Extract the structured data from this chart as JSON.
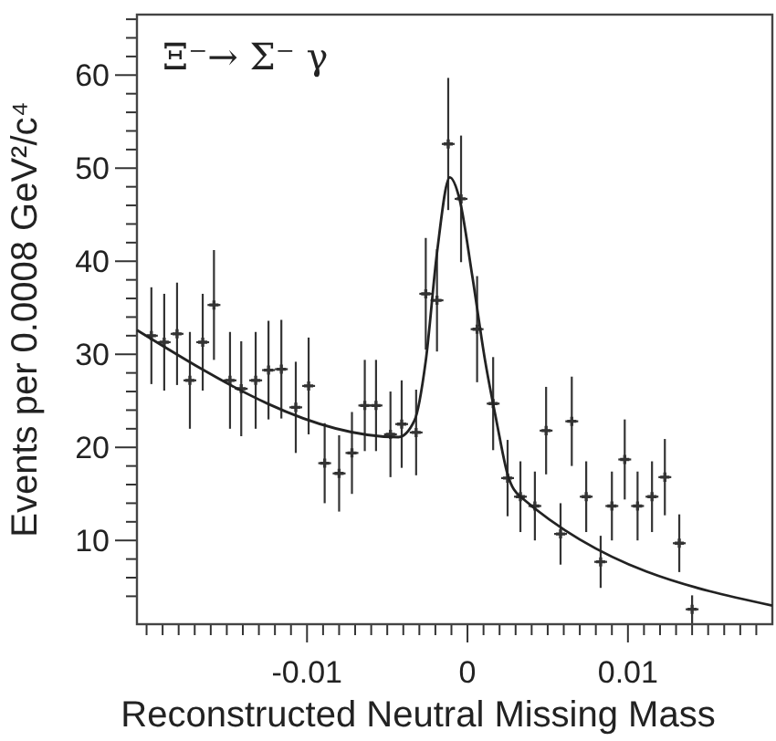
{
  "chart_data": {
    "type": "scatter",
    "xlabel": "Reconstructed Neutral Missing Mass",
    "ylabel": "Events per 0.0008 GeV²/c⁴",
    "annotations": [
      "Ξ⁻→ Σ⁻ γ"
    ],
    "xlim": [
      -0.0206,
      0.019
    ],
    "ylim": [
      1,
      66.5
    ],
    "xticks": [
      {
        "value": -0.02,
        "label": null
      },
      {
        "value": -0.019,
        "label": null
      },
      {
        "value": -0.018,
        "label": null
      },
      {
        "value": -0.017,
        "label": null
      },
      {
        "value": -0.016,
        "label": null
      },
      {
        "value": -0.015,
        "label": null
      },
      {
        "value": -0.014,
        "label": null
      },
      {
        "value": -0.013,
        "label": null
      },
      {
        "value": -0.012,
        "label": null
      },
      {
        "value": -0.011,
        "label": null
      },
      {
        "value": -0.01,
        "label": "-0.01"
      },
      {
        "value": -0.009,
        "label": null
      },
      {
        "value": -0.008,
        "label": null
      },
      {
        "value": -0.007,
        "label": null
      },
      {
        "value": -0.006,
        "label": null
      },
      {
        "value": -0.005,
        "label": null
      },
      {
        "value": -0.004,
        "label": null
      },
      {
        "value": -0.003,
        "label": null
      },
      {
        "value": -0.002,
        "label": null
      },
      {
        "value": -0.001,
        "label": null
      },
      0,
      {
        "value": 0.001,
        "label": null
      },
      {
        "value": 0.002,
        "label": null
      },
      {
        "value": 0.003,
        "label": null
      },
      {
        "value": 0.004,
        "label": null
      },
      {
        "value": 0.005,
        "label": null
      },
      {
        "value": 0.006,
        "label": null
      },
      {
        "value": 0.007,
        "label": null
      },
      {
        "value": 0.008,
        "label": null
      },
      {
        "value": 0.009,
        "label": null
      },
      0.01,
      {
        "value": 0.011,
        "label": null
      },
      {
        "value": 0.012,
        "label": null
      },
      {
        "value": 0.013,
        "label": null
      },
      {
        "value": 0.014,
        "label": null
      },
      {
        "value": 0.015,
        "label": null
      },
      {
        "value": 0.016,
        "label": null
      },
      {
        "value": 0.017,
        "label": null
      },
      {
        "value": 0.018,
        "label": null
      }
    ],
    "yticks": [
      {
        "value": 4,
        "label": null
      },
      {
        "value": 6,
        "label": null
      },
      {
        "value": 8,
        "label": null
      },
      10,
      {
        "value": 12,
        "label": null
      },
      {
        "value": 14,
        "label": null
      },
      {
        "value": 16,
        "label": null
      },
      {
        "value": 18,
        "label": null
      },
      20,
      {
        "value": 22,
        "label": null
      },
      {
        "value": 24,
        "label": null
      },
      {
        "value": 26,
        "label": null
      },
      {
        "value": 28,
        "label": null
      },
      30,
      {
        "value": 32,
        "label": null
      },
      {
        "value": 34,
        "label": null
      },
      {
        "value": 36,
        "label": null
      },
      {
        "value": 38,
        "label": null
      },
      40,
      {
        "value": 42,
        "label": null
      },
      {
        "value": 44,
        "label": null
      },
      {
        "value": 46,
        "label": null
      },
      {
        "value": 48,
        "label": null
      },
      50,
      {
        "value": 52,
        "label": null
      },
      {
        "value": 54,
        "label": null
      },
      {
        "value": 56,
        "label": null
      },
      {
        "value": 58,
        "label": null
      },
      60,
      {
        "value": 62,
        "label": null
      },
      {
        "value": 64,
        "label": null
      },
      {
        "value": 66,
        "label": null
      }
    ],
    "grid": false,
    "series": [
      {
        "color": "#333333",
        "marker": "cross",
        "x": [
          -0.0197,
          -0.0189,
          -0.0181,
          -0.0173,
          -0.0165,
          -0.0158,
          -0.0148,
          -0.0141,
          -0.0132,
          -0.0124,
          -0.0116,
          -0.0107,
          -0.0099,
          -0.0089,
          -0.008,
          -0.0072,
          -0.0064,
          -0.0057,
          -0.0048,
          -0.0041,
          -0.0032,
          -0.0026,
          -0.0019,
          -0.0012,
          -0.0004,
          0.0006,
          0.0016,
          0.0025,
          0.0033,
          0.0042,
          0.0049,
          0.0058,
          0.0065,
          0.0074,
          0.0083,
          0.009,
          0.0098,
          0.0106,
          0.0115,
          0.0123,
          0.0132,
          0.014
        ],
        "values": [
          32.0,
          31.3,
          32.2,
          27.2,
          31.3,
          35.3,
          27.2,
          26.3,
          27.2,
          28.3,
          28.4,
          24.3,
          26.6,
          18.3,
          17.2,
          19.4,
          24.5,
          24.5,
          21.4,
          22.5,
          21.6,
          36.5,
          35.8,
          52.6,
          46.7,
          32.7,
          24.7,
          16.7,
          14.7,
          13.7,
          21.8,
          10.7,
          22.8,
          14.7,
          7.7,
          13.7,
          18.7,
          13.7,
          14.7,
          16.8,
          9.7,
          2.6
        ],
        "errors": [
          5.2,
          5.2,
          5.5,
          5.2,
          5.2,
          5.9,
          5.2,
          5.1,
          5.2,
          5.3,
          5.3,
          4.9,
          5.2,
          4.3,
          4.1,
          4.4,
          4.9,
          4.9,
          4.6,
          4.7,
          4.6,
          6.0,
          5.5,
          7.1,
          6.8,
          5.7,
          5.0,
          4.1,
          3.8,
          3.7,
          4.7,
          3.3,
          4.8,
          3.8,
          2.8,
          3.7,
          4.3,
          3.7,
          3.8,
          4.1,
          3.1,
          1.5
        ],
        "xerrors": [
          0.0004,
          0.0004,
          0.0004,
          0.0004,
          0.0004,
          0.0004,
          0.0004,
          0.0004,
          0.0004,
          0.0004,
          0.0004,
          0.0004,
          0.0004,
          0.0004,
          0.0004,
          0.0004,
          0.0004,
          0.0004,
          0.0004,
          0.0004,
          0.0004,
          0.0004,
          0.0004,
          0.0004,
          0.0004,
          0.0004,
          0.0004,
          0.0004,
          0.0004,
          0.0004,
          0.0004,
          0.0004,
          0.0004,
          0.0004,
          0.0004,
          0.0004,
          0.0004,
          0.0004,
          0.0004,
          0.0004,
          0.0004,
          0.0004
        ]
      },
      {
        "type": "line",
        "color": "#222222",
        "marker": "none",
        "x": [
          -0.0206,
          -0.0043,
          -0.0033,
          -0.0026,
          -0.0019,
          -0.0011,
          -0.0005,
          0.0003,
          0.0011,
          0.0018,
          0.0025,
          0.0033,
          0.019
        ],
        "values": [
          32.6,
          21.1,
          22.9,
          29.3,
          40.9,
          49.0,
          46.7,
          38.4,
          29.3,
          22.9,
          17.1,
          14.7,
          3.0
        ]
      }
    ]
  }
}
